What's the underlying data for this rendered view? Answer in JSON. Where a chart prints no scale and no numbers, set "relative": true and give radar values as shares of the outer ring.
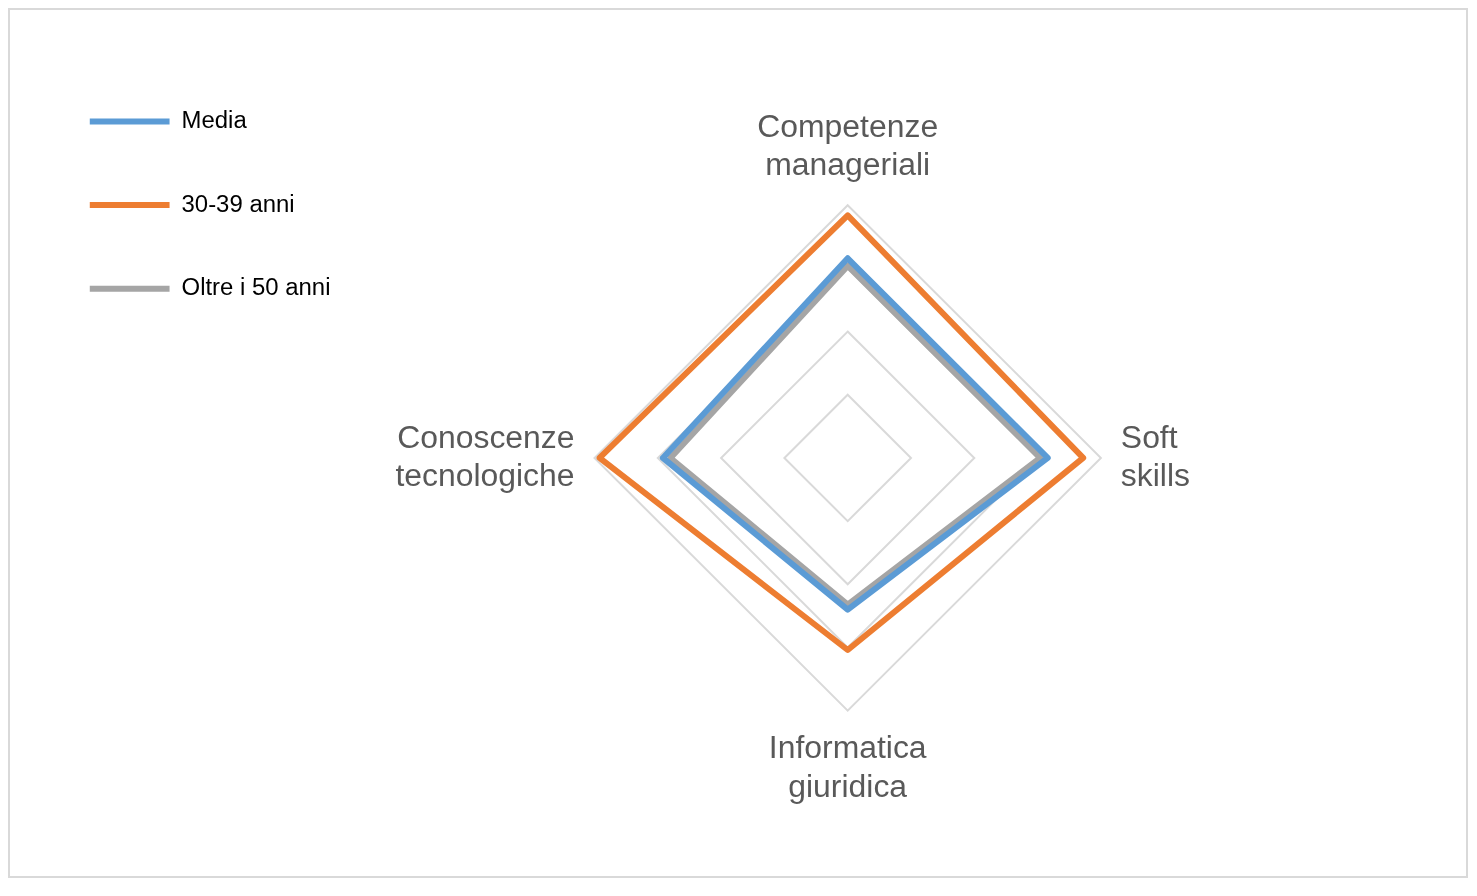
{
  "chart_data": {
    "type": "radar",
    "relative": true,
    "categories": [
      "Competenze manageriali",
      "Soft skills",
      "Informatica giuridica",
      "Conoscenze tecnologiche"
    ],
    "series": [
      {
        "name": "Media",
        "color": "#5b9bd5",
        "values": [
          0.79,
          0.79,
          0.6,
          0.73
        ]
      },
      {
        "name": "30-39 anni",
        "color": "#ed7d31",
        "values": [
          0.96,
          0.93,
          0.76,
          0.98
        ]
      },
      {
        "name": "Oltre i 50 anni",
        "color": "#a5a5a5",
        "values": [
          0.76,
          0.76,
          0.58,
          0.7
        ]
      }
    ],
    "legend": "top left",
    "marker": "none",
    "line_style": "solid",
    "grid": true
  }
}
